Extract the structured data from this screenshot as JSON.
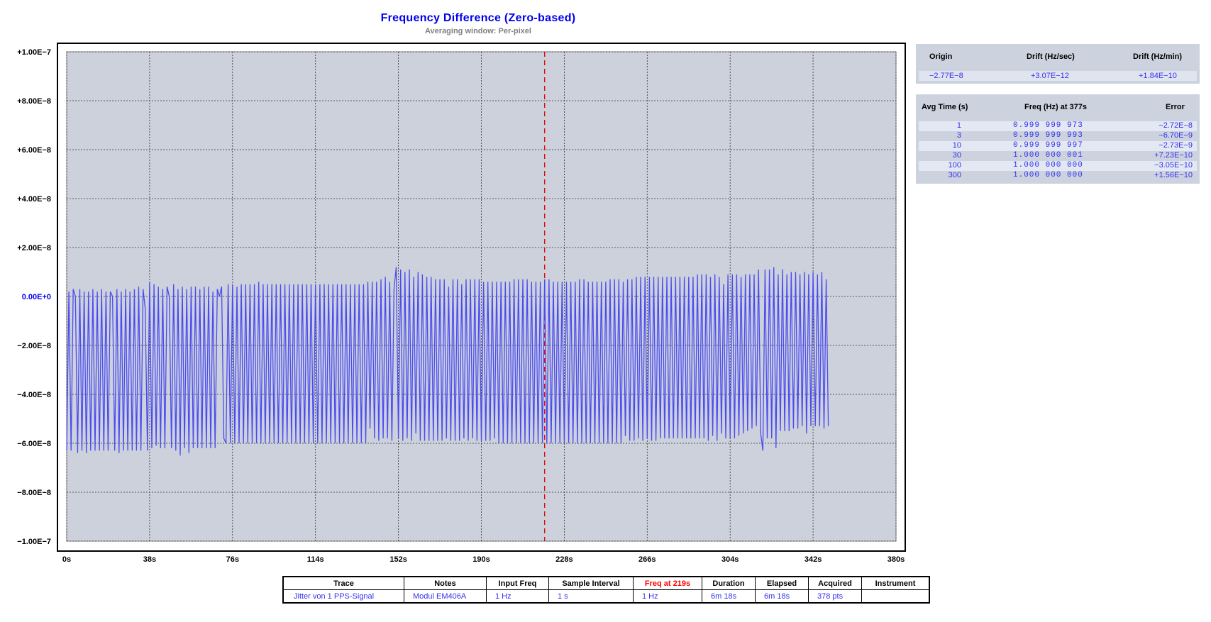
{
  "chart_data": {
    "type": "line",
    "title": "Frequency Difference (Zero-based)",
    "subtitle": "Averaging window: Per-pixel",
    "xlabel": "",
    "ylabel": "",
    "xlim": [
      0,
      380
    ],
    "ylim": [
      -1e-07,
      1e-07
    ],
    "x_tick_labels": [
      "0s",
      "38s",
      "76s",
      "114s",
      "152s",
      "190s",
      "228s",
      "266s",
      "304s",
      "342s",
      "380s"
    ],
    "y_tick_labels": [
      "+1.00E−7",
      "+8.00E−8",
      "+6.00E−8",
      "+4.00E−8",
      "+2.00E−8",
      "0.00E+0",
      "−2.00E−8",
      "−4.00E−8",
      "−6.00E−8",
      "−8.00E−8",
      "−1.00E−7"
    ],
    "grid": true,
    "marker_x": 219,
    "series": [
      {
        "name": "",
        "x_start": 0,
        "x_step": 1,
        "values": [
          -6.3e-08,
          2e-09,
          -6.3e-08,
          3e-09,
          0.0,
          -6.4e-08,
          3e-09,
          -6.3e-08,
          2e-09,
          -6.4e-08,
          2e-09,
          -6.3e-08,
          3e-09,
          -6.3e-08,
          2e-09,
          -6.3e-08,
          3e-09,
          -6.3e-08,
          2e-09,
          -6.3e-08,
          2e-09,
          0.0,
          -6.3e-08,
          3e-09,
          -6.4e-08,
          2e-09,
          -6.3e-08,
          3e-09,
          -6.3e-08,
          2e-09,
          -6.3e-08,
          3e-09,
          -6.3e-08,
          4e-09,
          -6.3e-08,
          3e-09,
          -5e-09,
          -6.3e-08,
          6e-09,
          -6.2e-08,
          5e-09,
          -6.1e-08,
          4e-09,
          -6.2e-08,
          3e-09,
          -6.2e-08,
          4e-09,
          0.0,
          -6.2e-08,
          5e-09,
          -6.3e-08,
          3e-09,
          -6.5e-08,
          4e-09,
          -6.2e-08,
          3e-09,
          -6.4e-08,
          4e-09,
          -6.2e-08,
          4e-09,
          -6.2e-08,
          3e-09,
          -6.2e-08,
          4e-09,
          -6.2e-08,
          4e-09,
          -6.2e-08,
          2e-09,
          -6.2e-08,
          3e-09,
          0.0,
          4e-09,
          -5.8e-08,
          -6e-08,
          5e-09,
          -6e-08,
          5e-09,
          -6e-08,
          4e-09,
          -6e-08,
          5e-09,
          -6e-08,
          5e-09,
          -6e-08,
          5e-09,
          -6e-08,
          5e-09,
          -6e-08,
          6e-09,
          -6e-08,
          5e-09,
          -6e-08,
          5e-09,
          -6e-08,
          5e-09,
          -6e-08,
          5e-09,
          -6e-08,
          5e-09,
          -6e-08,
          5e-09,
          -6e-08,
          5e-09,
          -6e-08,
          5e-09,
          -6e-08,
          5e-09,
          -6e-08,
          5e-09,
          -6e-08,
          5e-09,
          -6e-08,
          5e-09,
          -6e-08,
          5e-09,
          -6e-08,
          5e-09,
          -6e-08,
          5e-09,
          -6e-08,
          5e-09,
          -6e-08,
          5e-09,
          -6e-08,
          5e-09,
          -6e-08,
          5e-09,
          -6e-08,
          5e-09,
          -6e-08,
          5e-09,
          -6e-08,
          5e-09,
          -6e-08,
          5e-09,
          -6e-08,
          5e-09,
          -6e-08,
          6e-09,
          -5.4e-08,
          6e-09,
          -5.8e-08,
          6e-09,
          -5.9e-08,
          7e-09,
          -5.8e-08,
          8e-09,
          -5.8e-08,
          6e-09,
          -5.9e-08,
          3e-09,
          1.2e-08,
          -5.8e-08,
          1.1e-08,
          -5.9e-08,
          1e-08,
          -5.8e-08,
          1.1e-08,
          -5.9e-08,
          8e-09,
          -5.6e-08,
          1e-08,
          -5.9e-08,
          9e-09,
          -5.9e-08,
          8e-09,
          -5.9e-08,
          8e-09,
          -5.9e-08,
          7e-09,
          -5.9e-08,
          7e-09,
          -5.9e-08,
          7e-09,
          -5.8e-08,
          4e-09,
          -5.9e-08,
          7e-09,
          -5.9e-08,
          7e-09,
          -5.9e-08,
          5e-09,
          -5.8e-08,
          7e-09,
          -5.9e-08,
          7e-09,
          -5.8e-08,
          7e-09,
          -5.9e-08,
          7e-09,
          -5.9e-08,
          6e-09,
          -5.9e-08,
          6e-09,
          -5.9e-08,
          6e-09,
          -5.8e-08,
          6e-09,
          -6e-08,
          6e-09,
          -6e-08,
          6e-09,
          -6e-08,
          6e-09,
          -6e-08,
          7e-09,
          -6e-08,
          7e-09,
          -6e-08,
          7e-09,
          -6e-08,
          7e-09,
          -6e-08,
          6e-09,
          -6e-08,
          6e-09,
          -6e-08,
          6e-09,
          -6e-08,
          7e-09,
          -6e-08,
          7e-09,
          -6e-08,
          6e-09,
          -6e-08,
          6e-09,
          -6e-08,
          6e-09,
          -6e-08,
          6e-09,
          -6e-08,
          6e-09,
          -6e-08,
          6e-09,
          -6e-08,
          7e-09,
          -6e-08,
          7e-09,
          -6e-08,
          6e-09,
          -6e-08,
          6e-09,
          -6e-08,
          6e-09,
          -6e-08,
          6e-09,
          -6e-08,
          6e-09,
          -6e-08,
          7e-09,
          -6e-08,
          7e-09,
          -6e-08,
          7e-09,
          -6e-08,
          6e-09,
          -5.7e-08,
          7e-09,
          -5.9e-08,
          7e-09,
          -5.9e-08,
          8e-09,
          -5.8e-08,
          8e-09,
          -5.9e-08,
          8e-09,
          -5.8e-08,
          8e-09,
          -5.9e-08,
          8e-09,
          -5.9e-08,
          8e-09,
          -5.8e-08,
          8e-09,
          -5.8e-08,
          8e-09,
          -5.8e-08,
          8e-09,
          -5.8e-08,
          8e-09,
          -5.8e-08,
          8e-09,
          -5.8e-08,
          8e-09,
          -5.8e-08,
          8e-09,
          -5.8e-08,
          8e-09,
          -5.8e-08,
          9e-09,
          -5.8e-08,
          9e-09,
          -5.8e-08,
          9e-09,
          -5.9e-08,
          8e-09,
          -5.7e-08,
          9e-09,
          -5.9e-08,
          8e-09,
          -5.6e-08,
          5e-09,
          -5.8e-08,
          9e-09,
          -5.8e-08,
          9e-09,
          -5.8e-08,
          9e-09,
          -5.7e-08,
          8e-09,
          -5.6e-08,
          9e-09,
          -5.5e-08,
          9e-09,
          -5.4e-08,
          9e-09,
          -5.3e-08,
          1.1e-08,
          -5.6e-08,
          -6.3e-08,
          1.1e-08,
          -5.8e-08,
          1.1e-08,
          -5.8e-08,
          1.2e-08,
          -6.2e-08,
          9e-09,
          -5.5e-08,
          1.1e-08,
          -5.5e-08,
          9e-09,
          -5.5e-08,
          1e-08,
          -5.4e-08,
          1e-08,
          -5.4e-08,
          9e-09,
          -5.3e-08,
          1e-08,
          -5.6e-08,
          9e-09,
          -5.3e-08,
          1e-08,
          -5.3e-08,
          9e-09,
          -5.3e-08,
          1e-08,
          -5.4e-08,
          7e-09,
          -5.3e-08
        ]
      }
    ]
  },
  "drift_panel": {
    "headers": [
      "Origin",
      "Drift (Hz/sec)",
      "Drift (Hz/min)"
    ],
    "values": [
      "−2.77E−8",
      "+3.07E−12",
      "+1.84E−10"
    ]
  },
  "avg_panel": {
    "headers": [
      "Avg Time (s)",
      "Freq (Hz) at 377s",
      "Error"
    ],
    "rows": [
      {
        "avg": "1",
        "freq": "0.999 999 973",
        "err": "−2.72E−8"
      },
      {
        "avg": "3",
        "freq": "0.999 999 993",
        "err": "−6.70E−9"
      },
      {
        "avg": "10",
        "freq": "0.999 999 997",
        "err": "−2.73E−9"
      },
      {
        "avg": "30",
        "freq": "1.000 000 001",
        "err": "+7.23E−10"
      },
      {
        "avg": "100",
        "freq": "1.000 000 000",
        "err": "−3.05E−10"
      },
      {
        "avg": "300",
        "freq": "1.000 000 000",
        "err": "+1.56E−10"
      }
    ]
  },
  "info_table": {
    "headers": [
      "Trace",
      "Notes",
      "Input Freq",
      "Sample Interval",
      "Freq at 219s",
      "Duration",
      "Elapsed",
      "Acquired",
      "Instrument"
    ],
    "values": [
      "Jitter von 1 PPS-Signal",
      "Modul EM406A",
      "1 Hz",
      "1 s",
      "1 Hz",
      "6m 18s",
      "6m 18s",
      "378 pts",
      ""
    ]
  },
  "colors": {
    "trace": "#4b4bf0",
    "plot_bg": "#ccd1dc",
    "marker": "#e00000",
    "title": "#0000ee"
  }
}
